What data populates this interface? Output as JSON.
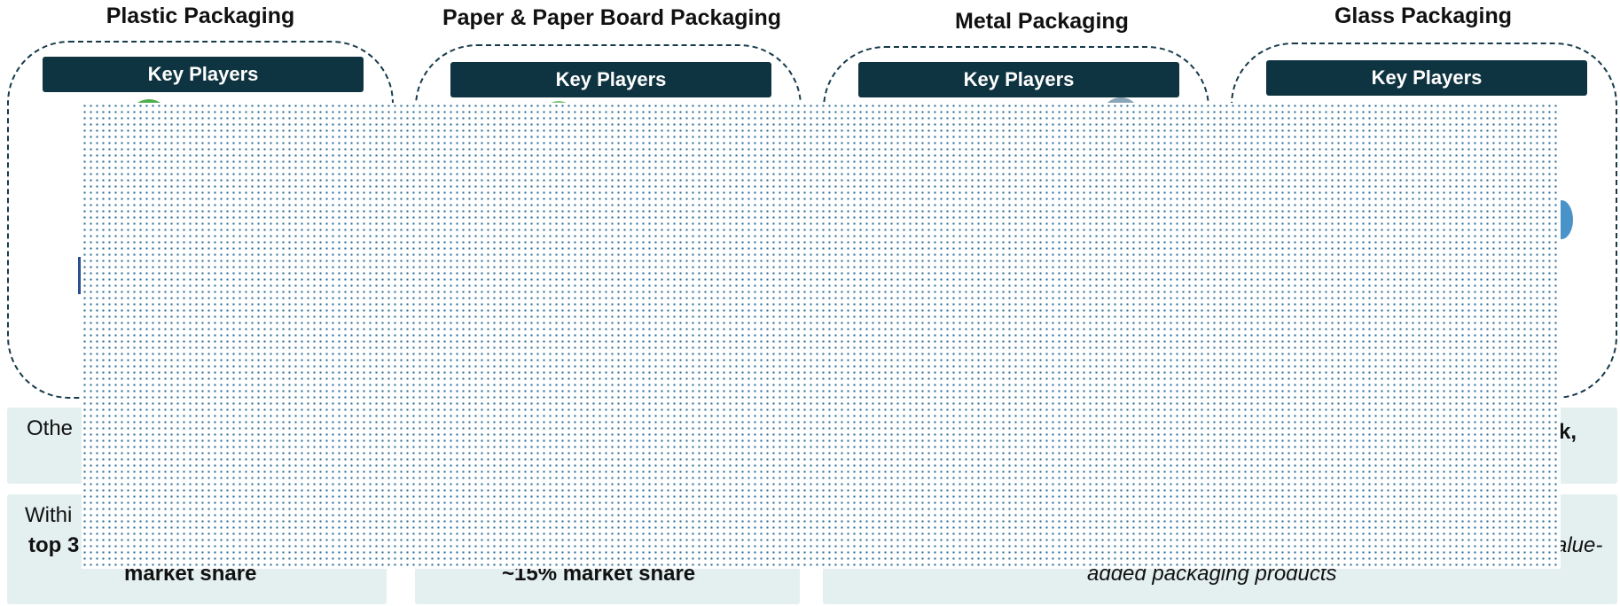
{
  "columns": [
    {
      "title": "Plastic Packaging",
      "button": "Key Players"
    },
    {
      "title": "Paper & Paper Board Packaging",
      "button": "Key Players"
    },
    {
      "title": "Metal Packaging",
      "button": "Key Players"
    },
    {
      "title": "Glass Packaging",
      "button": "Key Players"
    }
  ],
  "info": {
    "row1_left": "Othe",
    "row1_right": "k,",
    "row2_left_line1": "Withi",
    "row2_left_line2": "top 3",
    "row2_left_line3": "market share",
    "row2_mid": "~15% market share",
    "row2_right_line1": "alue-",
    "row2_right_line2": "added packaging products"
  },
  "colors": {
    "button_bg": "#0f3441",
    "panel_border": "#163a4b",
    "info_bg": "#e4efef",
    "overlay_dot": "#2f6f9a"
  }
}
